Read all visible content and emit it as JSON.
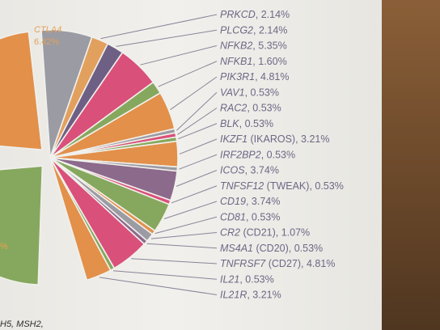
{
  "chart_data": {
    "type": "pie",
    "visible_labels": [
      {
        "gene": "PRKCD",
        "rest": "",
        "value": 2.14,
        "color": "#e2a05e"
      },
      {
        "gene": "PLCG2",
        "rest": "",
        "value": 2.14,
        "color": "#6e5f84"
      },
      {
        "gene": "NFKB2",
        "rest": "",
        "value": 5.35,
        "color": "#d9507a"
      },
      {
        "gene": "NFKB1",
        "rest": "",
        "value": 1.6,
        "color": "#86a85e"
      },
      {
        "gene": "PIK3R1",
        "rest": "",
        "value": 4.81,
        "color": "#e2904a"
      },
      {
        "gene": "VAV1",
        "rest": "",
        "value": 0.53,
        "color": "#9b9ba4"
      },
      {
        "gene": "RAC2",
        "rest": "",
        "value": 0.53,
        "color": "#d9507a"
      },
      {
        "gene": "BLK",
        "rest": "",
        "value": 0.53,
        "color": "#86a85e"
      },
      {
        "gene": "IKZF1",
        "rest": " (IKAROS)",
        "value": 3.21,
        "color": "#e2904a"
      },
      {
        "gene": "IRF2BP2",
        "rest": "",
        "value": 0.53,
        "color": "#9b9ba4"
      },
      {
        "gene": "ICOS",
        "rest": "",
        "value": 3.74,
        "color": "#8c6a8c"
      },
      {
        "gene": "TNFSF12",
        "rest": " (TWEAK)",
        "value": 0.53,
        "color": "#d9507a"
      },
      {
        "gene": "CD19",
        "rest": "",
        "value": 3.74,
        "color": "#86a85e"
      },
      {
        "gene": "CD81",
        "rest": "",
        "value": 0.53,
        "color": "#e2904a"
      },
      {
        "gene": "CR2",
        "rest": " (CD21)",
        "value": 1.07,
        "color": "#9b9ba4"
      },
      {
        "gene": "MS4A1",
        "rest": " (CD20)",
        "value": 0.53,
        "color": "#8c6a8c"
      },
      {
        "gene": "TNFRSF7",
        "rest": " (CD27)",
        "value": 4.81,
        "color": "#d9507a"
      },
      {
        "gene": "IL21",
        "rest": "",
        "value": 0.53,
        "color": "#86a85e"
      },
      {
        "gene": "IL21R",
        "rest": "",
        "value": 3.21,
        "color": "#e2904a"
      }
    ],
    "in_slice_label": {
      "gene": "CTLA4",
      "value": "6.42%",
      "color": "#9b9ba4"
    },
    "left_partial_slices": [
      {
        "color": "#e2904a"
      },
      {
        "color": "#86a85e",
        "label": "%"
      }
    ],
    "footnote": "H5, MSH2,"
  }
}
